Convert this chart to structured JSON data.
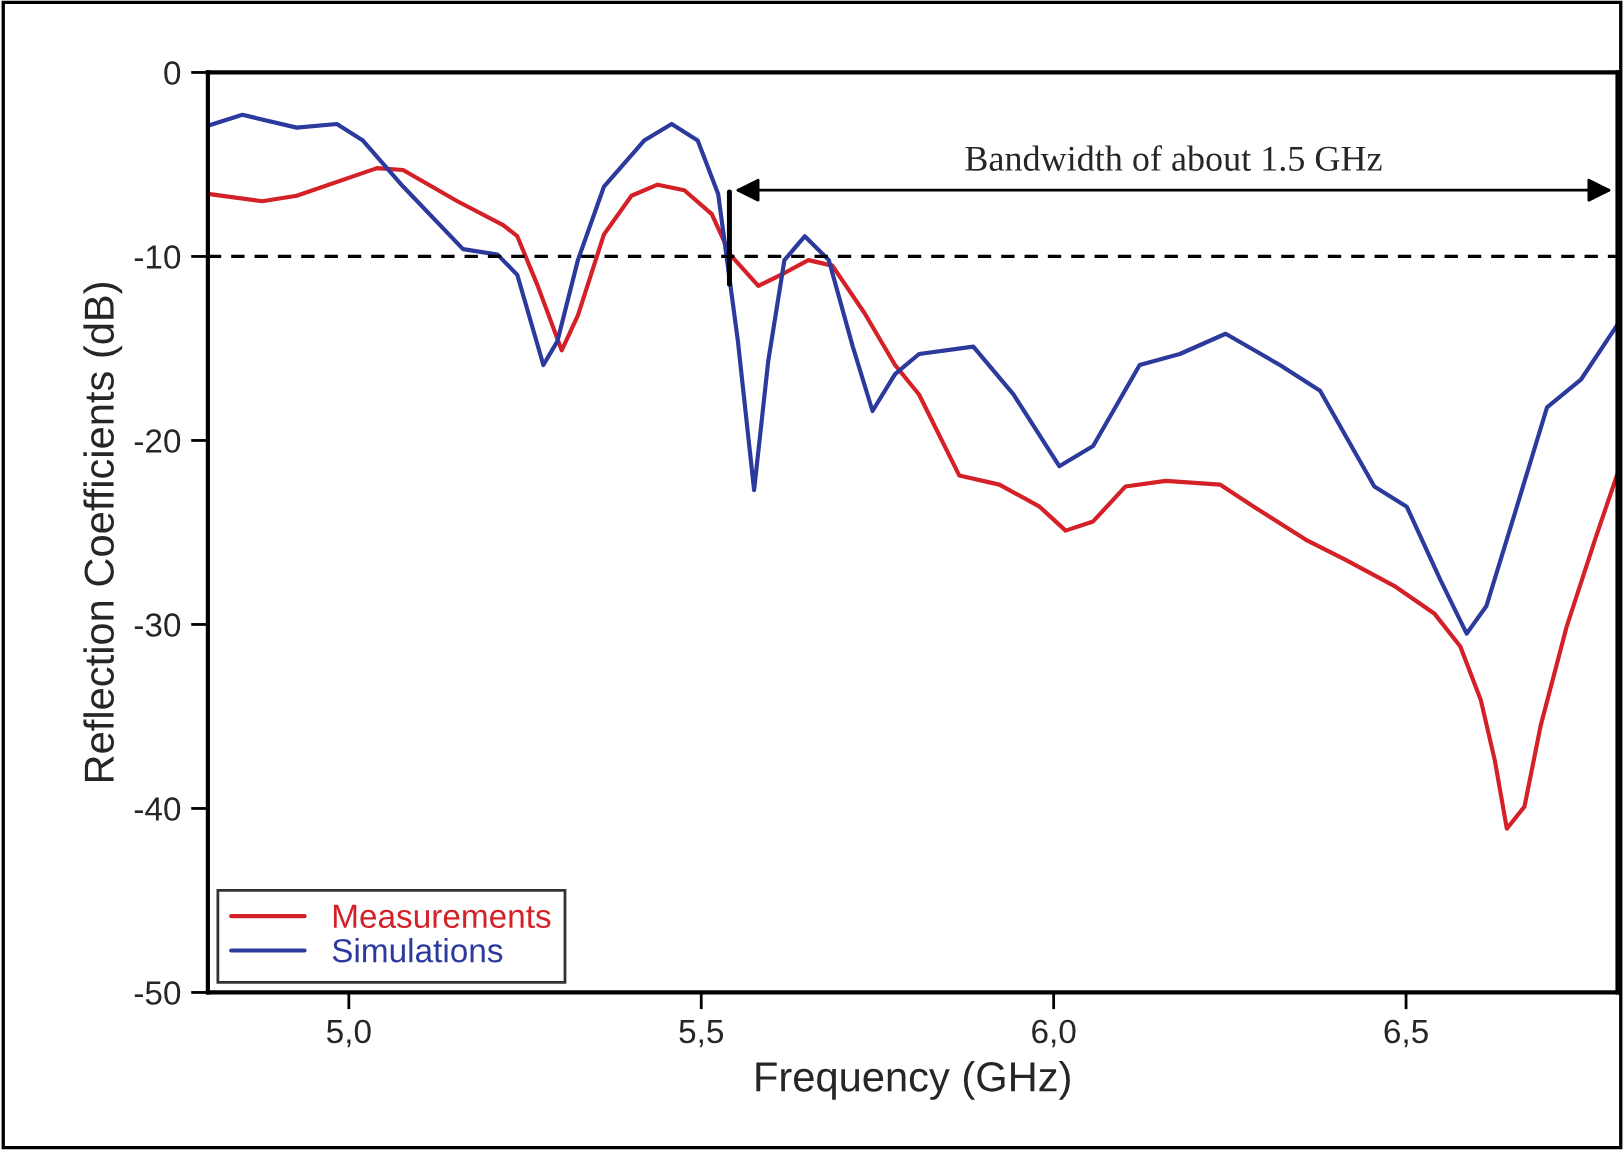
{
  "chart_data": {
    "type": "line",
    "xlabel": "Frequency (GHz)",
    "ylabel": "Reflection Coefficients (dB)",
    "xlim": [
      4.8,
      6.8
    ],
    "ylim": [
      -50,
      0
    ],
    "xticks": [
      {
        "value": 5.0,
        "label": "5,0"
      },
      {
        "value": 5.5,
        "label": "5,5"
      },
      {
        "value": 6.0,
        "label": "6,0"
      },
      {
        "value": 6.5,
        "label": "6,5"
      }
    ],
    "yticks": [
      0,
      -10,
      -20,
      -30,
      -40,
      -50
    ],
    "grid": false,
    "legend": "bottom left",
    "line_style": "solid",
    "marker": "none",
    "series": [
      {
        "name": "Measurements",
        "color": "#d42027",
        "x": [
          4.8,
          4.877,
          4.926,
          5.04,
          5.077,
          5.154,
          5.219,
          5.239,
          5.268,
          5.302,
          5.325,
          5.362,
          5.401,
          5.438,
          5.476,
          5.515,
          5.541,
          5.581,
          5.618,
          5.652,
          5.686,
          5.732,
          5.775,
          5.809,
          5.866,
          5.923,
          5.98,
          6.017,
          6.056,
          6.102,
          6.159,
          6.236,
          6.284,
          6.358,
          6.415,
          6.483,
          6.54,
          6.577,
          6.606,
          6.626,
          6.643,
          6.668,
          6.691,
          6.728,
          6.768,
          6.8
        ],
        "values": [
          -6.6,
          -7.0,
          -6.7,
          -5.2,
          -5.3,
          -7.0,
          -8.3,
          -8.9,
          -11.6,
          -15.1,
          -13.2,
          -8.8,
          -6.7,
          -6.1,
          -6.4,
          -7.7,
          -9.9,
          -11.6,
          -10.9,
          -10.2,
          -10.5,
          -13.1,
          -15.9,
          -17.5,
          -21.9,
          -22.4,
          -23.6,
          -24.9,
          -24.4,
          -22.5,
          -22.2,
          -22.4,
          -23.6,
          -25.4,
          -26.5,
          -27.9,
          -29.4,
          -31.2,
          -34.1,
          -37.4,
          -41.1,
          -39.9,
          -35.5,
          -30.1,
          -25.4,
          -21.8
        ]
      },
      {
        "name": "Simulations",
        "color": "#2b3a9c",
        "x": [
          4.8,
          4.849,
          4.926,
          4.983,
          5.02,
          5.077,
          5.162,
          5.211,
          5.239,
          5.276,
          5.296,
          5.325,
          5.362,
          5.419,
          5.458,
          5.495,
          5.524,
          5.552,
          5.575,
          5.595,
          5.618,
          5.647,
          5.681,
          5.715,
          5.743,
          5.775,
          5.809,
          5.886,
          5.943,
          6.008,
          6.056,
          6.122,
          6.179,
          6.244,
          6.321,
          6.378,
          6.455,
          6.501,
          6.549,
          6.586,
          6.614,
          6.654,
          6.7,
          6.748,
          6.8
        ],
        "values": [
          -2.9,
          -2.3,
          -3.0,
          -2.8,
          -3.7,
          -6.2,
          -9.6,
          -9.9,
          -11.0,
          -15.9,
          -14.6,
          -10.2,
          -6.2,
          -3.7,
          -2.8,
          -3.7,
          -6.6,
          -14.6,
          -22.7,
          -15.7,
          -10.2,
          -8.9,
          -10.2,
          -14.9,
          -18.4,
          -16.4,
          -15.3,
          -14.9,
          -17.5,
          -21.4,
          -20.3,
          -15.9,
          -15.3,
          -14.2,
          -15.9,
          -17.3,
          -22.5,
          -23.6,
          -27.6,
          -30.5,
          -29.0,
          -24.0,
          -18.2,
          -16.7,
          -13.7
        ]
      }
    ],
    "ref_lines": [
      {
        "axis": "y",
        "value": -10,
        "color": "#000000",
        "line_style": "dashed"
      },
      {
        "axis": "x",
        "value": 5.54,
        "color": "#000000",
        "line_style": "solid"
      }
    ],
    "annotations": [
      "Bandwidth of about 1.5 GHz"
    ]
  }
}
